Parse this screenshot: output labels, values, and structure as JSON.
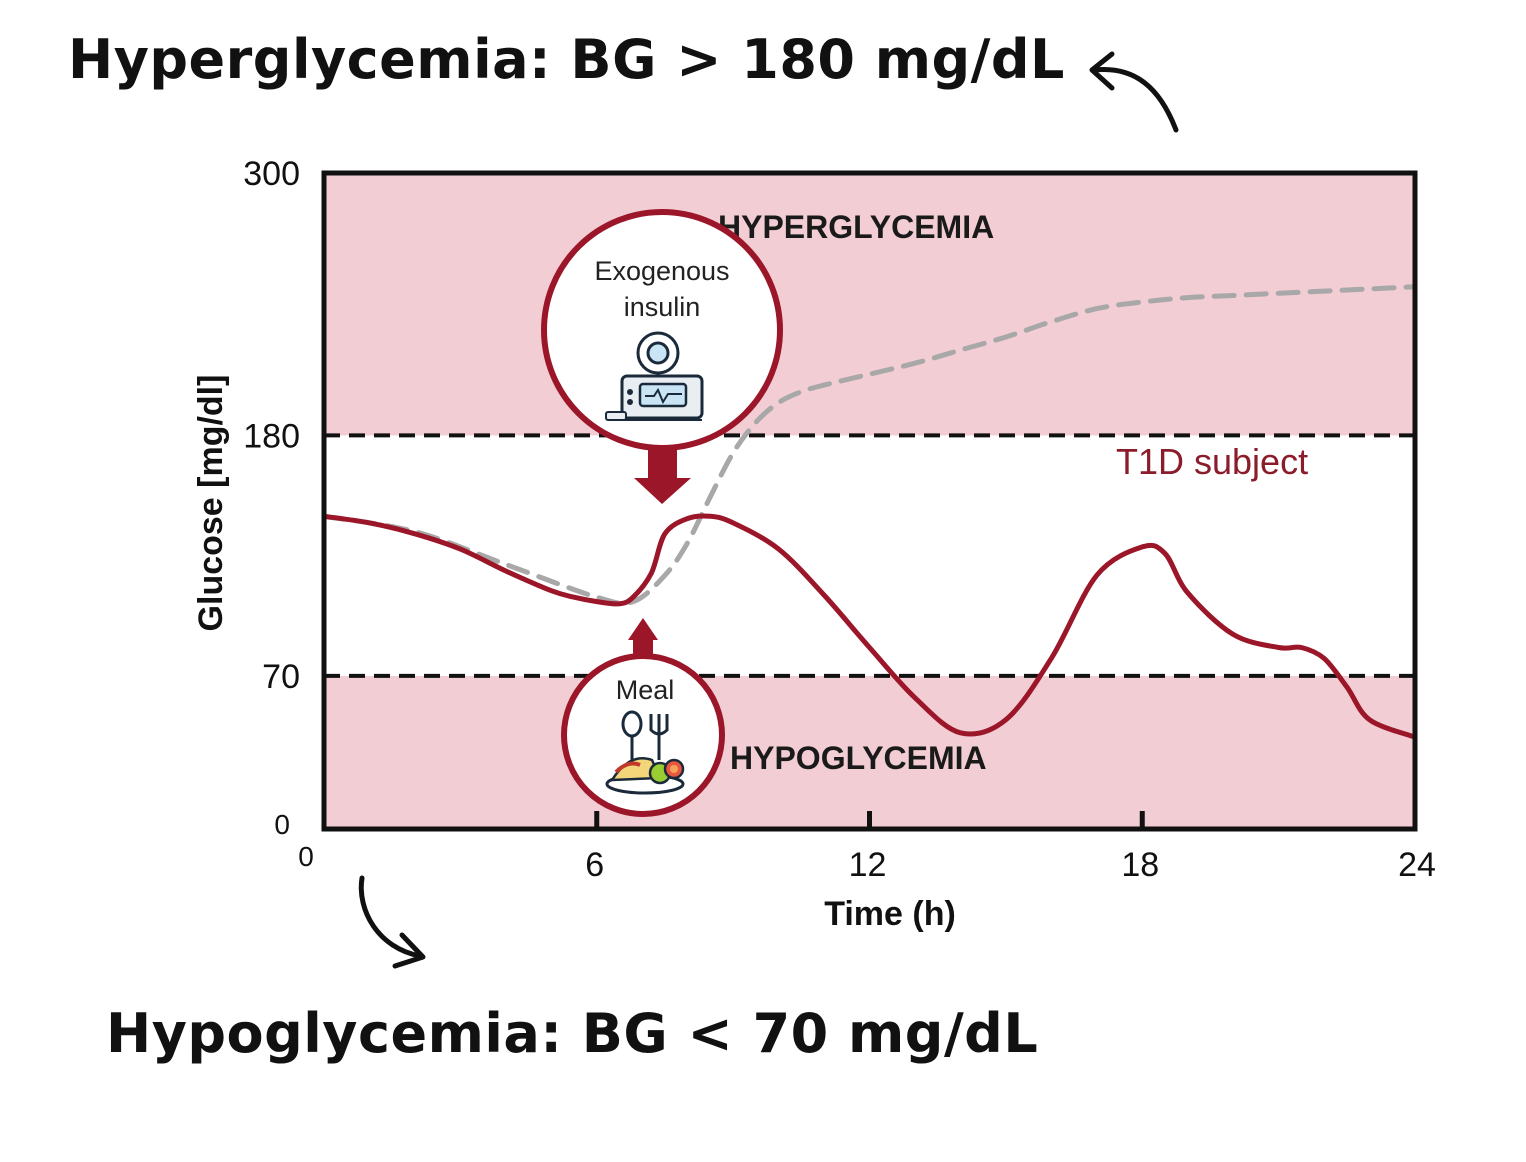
{
  "captions": {
    "top": "Hyperglycemia: BG > 180 mg/dL",
    "bottom": "Hypoglycemia: BG < 70 mg/dL"
  },
  "colors": {
    "zone": "#f2cdd4",
    "subject": "#9b1628",
    "baseline": "#a8a8a8",
    "frame": "#111111"
  },
  "chart_data": {
    "type": "line",
    "xlabel": "Time (h)",
    "ylabel": "Glucose [mg/dl]",
    "xlim": [
      0,
      24
    ],
    "ylim": [
      0,
      300
    ],
    "xticks": [
      0,
      6,
      12,
      18,
      24
    ],
    "xtick_labels": [
      "0",
      "6",
      "12",
      "18",
      "24"
    ],
    "yticks": [
      0,
      70,
      180,
      300
    ],
    "ytick_labels": [
      "0",
      "70",
      "180",
      "300"
    ],
    "thresholds": [
      {
        "value": 180,
        "style": "dashed"
      },
      {
        "value": 70,
        "style": "dashed"
      }
    ],
    "regions": [
      {
        "label": "HYPERGLYCEMIA",
        "from": 180,
        "to": 300
      },
      {
        "label": "HYPOGLYCEMIA",
        "from": 0,
        "to": 70
      }
    ],
    "series": [
      {
        "name": "T1D subject",
        "style": "solid",
        "x": [
          0,
          1,
          2,
          3,
          4,
          5,
          5.5,
          6,
          6.5,
          6.8,
          7.2,
          7.5,
          8,
          8.5,
          9,
          10,
          11,
          12,
          13,
          14,
          15,
          16,
          17,
          18,
          18.5,
          19,
          20,
          21,
          21.5,
          22,
          22.5,
          23,
          24
        ],
        "y": [
          143,
          140,
          135,
          128,
          118,
          109,
          106,
          104,
          103,
          106,
          117,
          135,
          142,
          143,
          140,
          128,
          107,
          83,
          60,
          44,
          50,
          78,
          116,
          129,
          126,
          108,
          89,
          83,
          83,
          78,
          65,
          50,
          42
        ]
      },
      {
        "name": "",
        "style": "dashed",
        "x": [
          0,
          2,
          4,
          6,
          6.8,
          7.5,
          8,
          8.5,
          9,
          9.5,
          10,
          10.5,
          11,
          12,
          13,
          14,
          15,
          16,
          17,
          18,
          19,
          20,
          21,
          22,
          23,
          24
        ],
        "y": [
          143,
          136,
          121,
          106,
          104,
          116,
          131,
          152,
          172,
          186,
          195,
          200,
          203,
          208,
          213,
          219,
          225,
          232,
          238,
          241,
          243,
          244,
          245,
          246,
          247,
          248
        ]
      }
    ],
    "annotations": [
      {
        "label": "Exogenous insulin",
        "x": 7.5,
        "direction": "down"
      },
      {
        "label": "Meal",
        "x": 7.1,
        "direction": "up"
      }
    ]
  },
  "bubbles": {
    "insulin": {
      "line1": "Exogenous",
      "line2": "insulin",
      "icon": "insulin-pump-icon"
    },
    "meal": {
      "line1": "Meal",
      "icon": "meal-plate-icon"
    }
  },
  "legend": {
    "subject_label": "T1D subject"
  }
}
